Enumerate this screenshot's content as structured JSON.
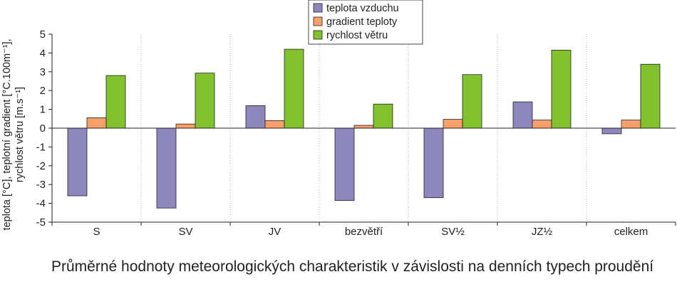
{
  "chart_data": {
    "type": "bar",
    "title": "Průměrné hodnoty meteorologických charakteristik v závislosti na denních typech proudění",
    "ylabel_lines": [
      "teplota [°C], teplotní gradient [°C.100m⁻¹],",
      "rychlost větru [m.s⁻¹]"
    ],
    "xlabel": "",
    "categories": [
      "S",
      "SV",
      "JV",
      "bezvětří",
      "SV½",
      "JZ½",
      "celkem"
    ],
    "ylim": [
      -5,
      5
    ],
    "yticks": [
      5,
      4,
      3,
      2,
      1,
      0,
      -1,
      -2,
      -3,
      -4,
      -5
    ],
    "grid": "vertical-dotted",
    "legend_position": "top-center",
    "series": [
      {
        "name": "teplota vzduchu",
        "color": "#8d87bd",
        "values": [
          -3.6,
          -4.25,
          1.2,
          -3.85,
          -3.7,
          1.4,
          -0.3
        ]
      },
      {
        "name": "gradient teploty",
        "color": "#f7a06a",
        "values": [
          0.55,
          0.22,
          0.4,
          0.15,
          0.47,
          0.43,
          0.43
        ]
      },
      {
        "name": "rychlost větru",
        "color": "#82c22d",
        "values": [
          2.8,
          2.93,
          4.2,
          1.28,
          2.85,
          4.15,
          3.4
        ]
      }
    ]
  }
}
